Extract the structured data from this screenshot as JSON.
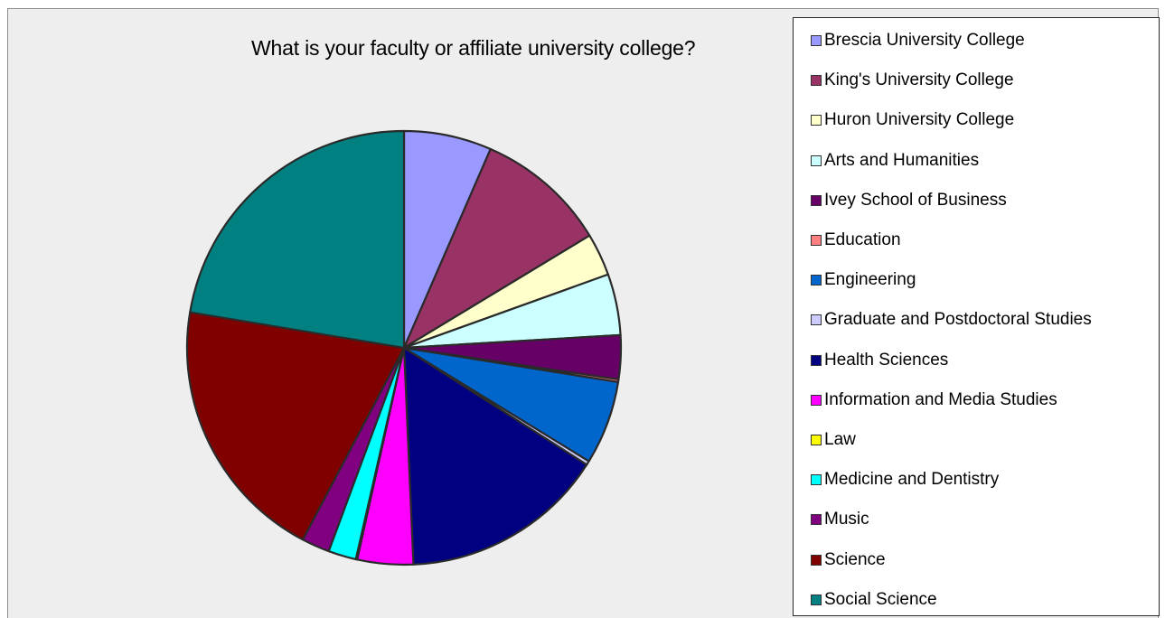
{
  "chart_data": {
    "type": "pie",
    "title": "What is your faculty or affiliate university college?",
    "legend_position": "right",
    "categories": [
      "Brescia University College",
      "King's University College",
      "Huron University College",
      "Arts and Humanities",
      "Ivey School of Business",
      "Education",
      "Engineering",
      "Graduate and Postdoctoral Studies",
      "Health Sciences",
      "Information and Media Studies",
      "Law",
      "Medicine and Dentistry",
      "Music",
      "Science",
      "Social Science"
    ],
    "values": [
      6.6,
      9.9,
      3.2,
      4.6,
      3.3,
      0.2,
      6.3,
      0.3,
      15.4,
      4.2,
      0.1,
      2.1,
      2.1,
      20.1,
      22.6
    ],
    "unit": "percent (estimated)",
    "colors": [
      "#9999ff",
      "#993366",
      "#ffffcc",
      "#ccffff",
      "#660066",
      "#ff8080",
      "#0066cc",
      "#ccccff",
      "#000080",
      "#ff00ff",
      "#ffff00",
      "#00ffff",
      "#800080",
      "#800000",
      "#008080"
    ]
  }
}
